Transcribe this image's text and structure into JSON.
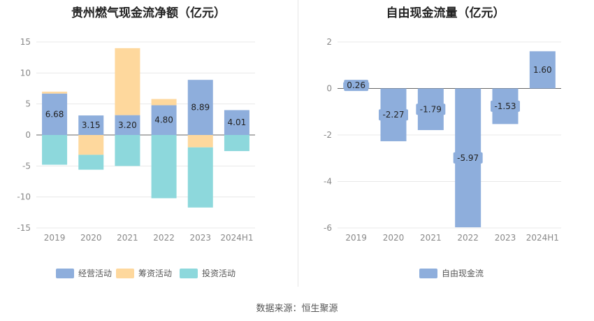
{
  "chart_data": [
    {
      "type": "bar",
      "stacked": true,
      "title": "贵州燃气现金流净额（亿元）",
      "categories": [
        "2019",
        "2020",
        "2021",
        "2022",
        "2023",
        "2024H1"
      ],
      "series": [
        {
          "name": "经营活动",
          "color": "#8eaedc",
          "values": [
            6.68,
            3.15,
            3.2,
            4.8,
            8.89,
            4.01
          ]
        },
        {
          "name": "筹资活动",
          "color": "#fed89d",
          "values": [
            0.3,
            -3.2,
            10.8,
            1.0,
            -2.0,
            0
          ]
        },
        {
          "name": "投资活动",
          "color": "#8dd8dc",
          "values": [
            -4.8,
            -2.4,
            -5.0,
            -10.2,
            -9.7,
            -2.6
          ]
        }
      ],
      "data_labels": [
        "6.68",
        "3.15",
        "3.20",
        "4.80",
        "8.89",
        "4.01"
      ],
      "y_ticks": [
        "15",
        "10",
        "5",
        "0",
        "-5",
        "-10",
        "-15"
      ],
      "ylim": [
        -15,
        15
      ],
      "grid": true,
      "legend": "bottom"
    },
    {
      "type": "bar",
      "title": "自由现金流量（亿元）",
      "categories": [
        "2019",
        "2020",
        "2021",
        "2022",
        "2023",
        "2024H1"
      ],
      "series": [
        {
          "name": "自由现金流",
          "color": "#8eaedc",
          "values": [
            0.26,
            -2.27,
            -1.79,
            -5.97,
            -1.53,
            1.6
          ]
        }
      ],
      "data_labels": [
        "0.26",
        "-2.27",
        "-1.79",
        "-5.97",
        "-1.53",
        "1.60"
      ],
      "y_ticks": [
        "2",
        "0",
        "-2",
        "-4",
        "-6"
      ],
      "ylim": [
        -6,
        2
      ],
      "grid": true,
      "legend": "bottom"
    }
  ],
  "footer": "数据来源：恒生聚源"
}
